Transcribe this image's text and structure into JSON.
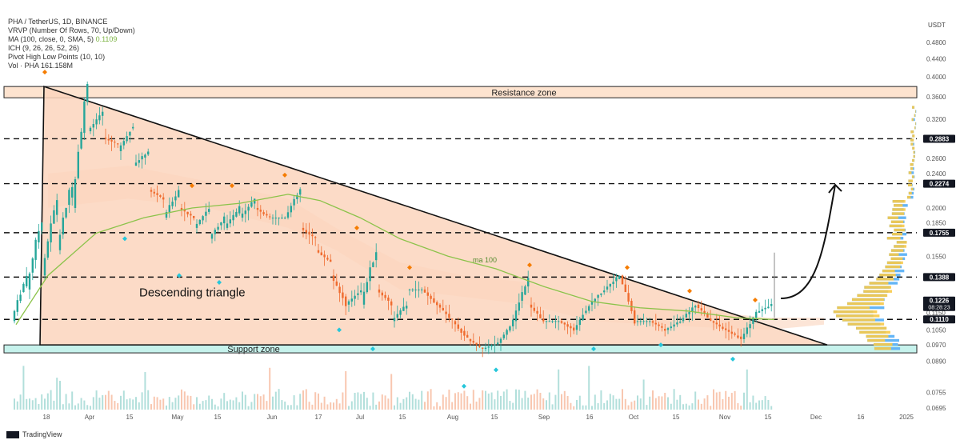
{
  "legend": {
    "symbol": "PHA / TetherUS, 1D, BINANCE",
    "vrvp": "VRVP (Number Of Rows, 70, Up/Down)",
    "ma": "MA (100, close, 0, SMA, 5)",
    "ma_value": "0.1109",
    "ich": "ICH (9, 26, 26, 52, 26)",
    "pivot": "Pivot High Low Points (10, 10)",
    "vol": "Vol · PHA  161.158M"
  },
  "brand": "TradingView",
  "currency": "USDT",
  "annotations": {
    "resistance": "Resistance zone",
    "support": "Support zone",
    "triangle": "Descending triangle",
    "ma": "ma 100"
  },
  "colors": {
    "up": "#26a69a",
    "down": "#ef6c2f",
    "triangle_fill": "#fbd5bd",
    "resistance_fill": "#fde3cf",
    "support_fill": "#c6f2ec",
    "ma": "#8bc34a",
    "cloud": "#f6b48c",
    "price_label": "#131722",
    "vp_up": "#f7c948",
    "vp_down": "#64b5f6"
  },
  "chart_data": {
    "type": "candlestick",
    "title": "PHA / TetherUS, 1D, BINANCE",
    "y_scale": "log",
    "y_ticks": [
      "0.4800",
      "0.4400",
      "0.4000",
      "0.3600",
      "0.3200",
      "0.2883",
      "0.2600",
      "0.2400",
      "0.2274",
      "0.2000",
      "0.1850",
      "0.1755",
      "0.1550",
      "0.1388",
      "0.1226",
      "0.1150",
      "0.1110",
      "0.1050",
      "0.0970",
      "0.0890",
      "0.0755",
      "0.0695"
    ],
    "x_ticks": [
      "18",
      "Apr",
      "15",
      "May",
      "15",
      "Jun",
      "17",
      "Jul",
      "15",
      "Aug",
      "15",
      "Sep",
      "16",
      "Oct",
      "15",
      "Nov",
      "15",
      "Dec",
      "16",
      "2025"
    ],
    "horizontal_levels": [
      0.38,
      0.2883,
      0.2274,
      0.1755,
      0.1388,
      0.111
    ],
    "resistance_zone": [
      0.358,
      0.38
    ],
    "support_zone": [
      0.093,
      0.097
    ],
    "price_labels": [
      {
        "label": "0.2883",
        "value": 0.2883
      },
      {
        "label": "0.2274",
        "value": 0.2274
      },
      {
        "label": "0.1755",
        "value": 0.1755
      },
      {
        "label": "0.1388",
        "value": 0.1388
      },
      {
        "label": "0.1226",
        "value": 0.1226,
        "sub": "08:28:23"
      },
      {
        "label": "0.1110",
        "value": 0.111
      }
    ],
    "triangle": {
      "apex_high": 0.38,
      "base": 0.097,
      "end": 0.097
    },
    "close_path": [
      [
        0.11,
        0.14
      ],
      [
        0.13,
        0.19
      ],
      [
        0.14,
        0.21
      ],
      [
        0.16,
        0.23
      ],
      [
        0.2,
        0.38
      ],
      [
        0.3,
        0.33
      ],
      [
        0.29,
        0.28
      ],
      [
        0.27,
        0.31
      ],
      [
        0.25,
        0.27
      ],
      [
        0.22,
        0.21
      ],
      [
        0.19,
        0.22
      ],
      [
        0.2,
        0.19
      ],
      [
        0.18,
        0.2
      ],
      [
        0.17,
        0.19
      ],
      [
        0.18,
        0.2
      ],
      [
        0.19,
        0.21
      ],
      [
        0.2,
        0.19
      ],
      [
        0.19,
        0.19
      ],
      [
        0.19,
        0.22
      ],
      [
        0.18,
        0.17
      ],
      [
        0.16,
        0.15
      ],
      [
        0.14,
        0.12
      ],
      [
        0.12,
        0.13
      ],
      [
        0.12,
        0.16
      ],
      [
        0.13,
        0.12
      ],
      [
        0.11,
        0.12
      ],
      [
        0.13,
        0.13
      ],
      [
        0.13,
        0.12
      ],
      [
        0.12,
        0.11
      ],
      [
        0.11,
        0.1
      ],
      [
        0.1,
        0.095
      ],
      [
        0.095,
        0.098
      ],
      [
        0.098,
        0.11
      ],
      [
        0.11,
        0.14
      ],
      [
        0.12,
        0.11
      ],
      [
        0.11,
        0.11
      ],
      [
        0.11,
        0.105
      ],
      [
        0.105,
        0.12
      ],
      [
        0.12,
        0.13
      ],
      [
        0.13,
        0.14
      ],
      [
        0.14,
        0.11
      ],
      [
        0.11,
        0.11
      ],
      [
        0.11,
        0.105
      ],
      [
        0.105,
        0.11
      ],
      [
        0.11,
        0.12
      ],
      [
        0.12,
        0.11
      ],
      [
        0.11,
        0.105
      ],
      [
        0.105,
        0.1
      ],
      [
        0.1,
        0.115
      ],
      [
        0.115,
        0.12
      ],
      [
        0.12,
        0.115
      ],
      [
        0.115,
        0.1226
      ]
    ]
  }
}
